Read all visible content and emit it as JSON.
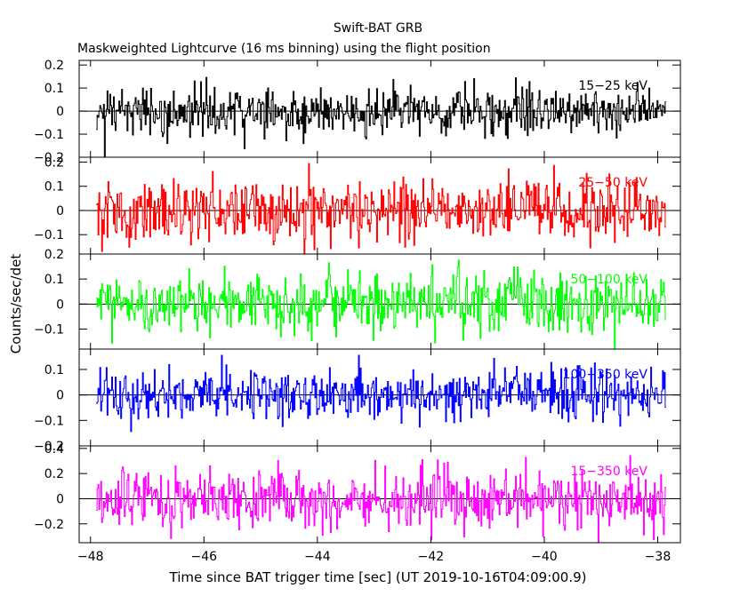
{
  "chart_data": {
    "type": "line",
    "title": "Swift-BAT GRB",
    "subtitle": "Maskweighted Lightcurve (16 ms binning) using the flight position",
    "xlabel": "Time since BAT trigger time [sec] (UT 2019-10-16T04:09:00.9)",
    "ylabel": "Counts/sec/det",
    "xlim": [
      -48.2,
      -37.6
    ],
    "x_ticks": [
      {
        "value": -48,
        "label": "−48"
      },
      {
        "value": -46,
        "label": "−46"
      },
      {
        "value": -44,
        "label": "−44"
      },
      {
        "value": -42,
        "label": "−42"
      },
      {
        "value": -40,
        "label": "−40"
      },
      {
        "value": -38,
        "label": "−38"
      }
    ],
    "x_start": -47.9,
    "x_end": -37.85,
    "bin_width": 0.016,
    "panels": [
      {
        "band": "15−25 keV",
        "color": "#000000",
        "ylim": [
          -0.2,
          0.22
        ],
        "noise_sigma": 0.055,
        "y_ticks": [
          {
            "value": 0.2,
            "label": "0.2"
          },
          {
            "value": 0.1,
            "label": "0.1"
          },
          {
            "value": 0,
            "label": "0"
          },
          {
            "value": -0.1,
            "label": "−0.1"
          },
          {
            "value": -0.2,
            "label": "−0.2"
          }
        ]
      },
      {
        "band": "25−50 keV",
        "color": "#ff0000",
        "ylim": [
          -0.18,
          0.22
        ],
        "noise_sigma": 0.065,
        "y_ticks": [
          {
            "value": 0.2,
            "label": "0.2"
          },
          {
            "value": 0.1,
            "label": "0.1"
          },
          {
            "value": 0,
            "label": "0"
          },
          {
            "value": -0.1,
            "label": "−0.1"
          }
        ]
      },
      {
        "band": "50−100 keV",
        "color": "#00ff00",
        "ylim": [
          -0.18,
          0.2
        ],
        "noise_sigma": 0.06,
        "y_ticks": [
          {
            "value": 0.2,
            "label": "0.2"
          },
          {
            "value": 0.1,
            "label": "0.1"
          },
          {
            "value": 0,
            "label": "0"
          },
          {
            "value": -0.1,
            "label": "−0.1"
          }
        ]
      },
      {
        "band": "100−350 keV",
        "color": "#0000ff",
        "ylim": [
          -0.2,
          0.18
        ],
        "noise_sigma": 0.05,
        "y_ticks": [
          {
            "value": 0.1,
            "label": "0.1"
          },
          {
            "value": 0,
            "label": "0"
          },
          {
            "value": -0.1,
            "label": "−0.1"
          },
          {
            "value": -0.2,
            "label": "−0.2"
          }
        ]
      },
      {
        "band": "15−350 keV",
        "color": "#ff00ff",
        "ylim": [
          -0.35,
          0.42
        ],
        "noise_sigma": 0.12,
        "y_ticks": [
          {
            "value": 0.4,
            "label": "0.4"
          },
          {
            "value": 0.2,
            "label": "0.2"
          },
          {
            "value": 0,
            "label": "0"
          },
          {
            "value": -0.2,
            "label": "−0.2"
          }
        ]
      }
    ]
  }
}
